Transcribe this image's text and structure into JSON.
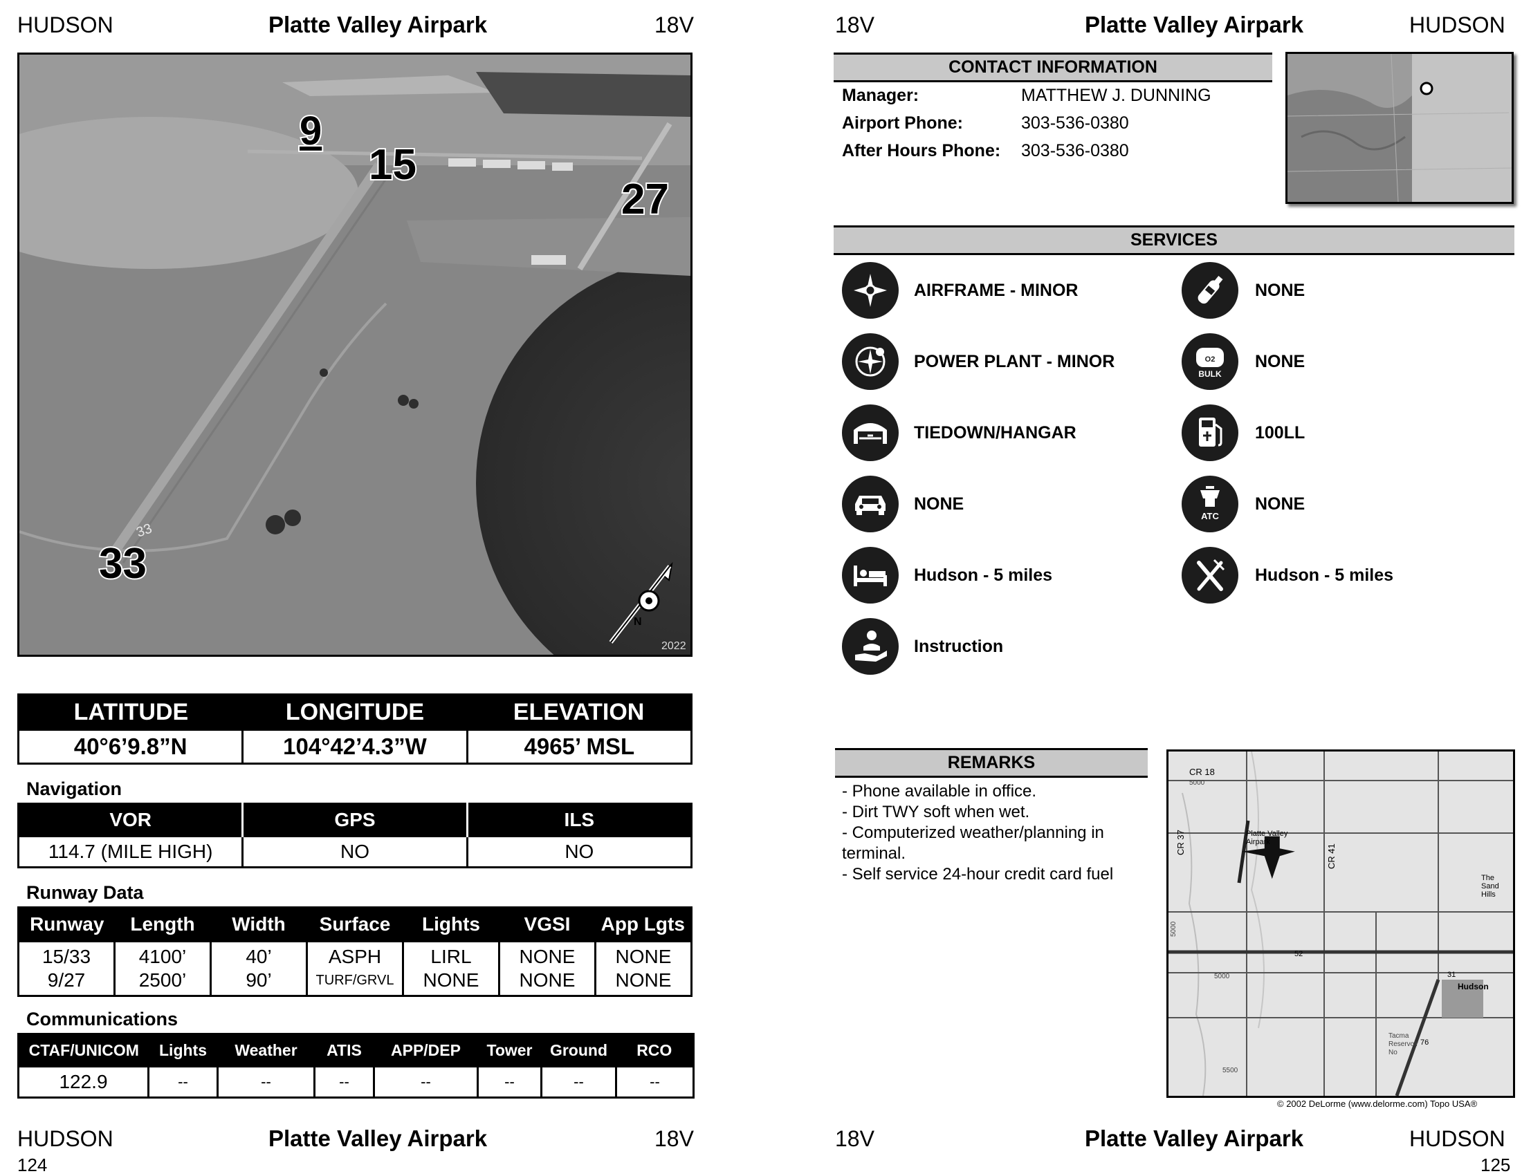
{
  "left_page": {
    "header": {
      "city": "HUDSON",
      "airport": "Platte Valley Airpark",
      "id": "18V"
    },
    "photo": {
      "runway_labels": [
        "9",
        "15",
        "27",
        "33"
      ],
      "painted_runway_number": "33",
      "year": "2022",
      "compass_letter": "N"
    },
    "coords": {
      "headers": [
        "LATITUDE",
        "LONGITUDE",
        "ELEVATION"
      ],
      "values": [
        "40°6’9.8”N",
        "104°42’4.3”W",
        "4965’ MSL"
      ]
    },
    "navigation": {
      "title": "Navigation",
      "headers": [
        "VOR",
        "GPS",
        "ILS"
      ],
      "values": [
        "114.7 (MILE HIGH)",
        "NO",
        "NO"
      ]
    },
    "runway_data": {
      "title": "Runway Data",
      "headers": [
        "Runway",
        "Length",
        "Width",
        "Surface",
        "Lights",
        "VGSI",
        "App Lgts"
      ],
      "rows": [
        [
          "15/33",
          "4100’",
          "40’",
          "ASPH",
          "LIRL",
          "NONE",
          "NONE"
        ],
        [
          "9/27",
          "2500’",
          "90’",
          "TURF/GRVL",
          "NONE",
          "NONE",
          "NONE"
        ]
      ]
    },
    "communications": {
      "title": "Communications",
      "headers": [
        "CTAF/UNICOM",
        "Lights",
        "Weather",
        "ATIS",
        "APP/DEP",
        "Tower",
        "Ground",
        "RCO"
      ],
      "values": [
        "122.9",
        "--",
        "--",
        "--",
        "--",
        "--",
        "--",
        "--"
      ]
    },
    "footer": {
      "city": "HUDSON",
      "airport": "Platte Valley Airpark",
      "id": "18V",
      "page": "124"
    }
  },
  "right_page": {
    "header": {
      "id": "18V",
      "airport": "Platte Valley Airpark",
      "city": "HUDSON"
    },
    "contact": {
      "title": "CONTACT INFORMATION",
      "rows": [
        {
          "label": "Manager:",
          "value": "MATTHEW J. DUNNING"
        },
        {
          "label": "Airport Phone:",
          "value": "303-536-0380"
        },
        {
          "label": "After Hours Phone:",
          "value": "303-536-0380"
        }
      ]
    },
    "services": {
      "title": "SERVICES",
      "items": [
        {
          "icon": "airframe-icon",
          "label": "AIRFRAME - MINOR"
        },
        {
          "icon": "oxygen-bottle-icon",
          "label": "NONE"
        },
        {
          "icon": "power-plant-icon",
          "label": "POWER PLANT - MINOR"
        },
        {
          "icon": "bulk-oxygen-icon",
          "label": "NONE",
          "icon_text": [
            "O2",
            "BULK"
          ]
        },
        {
          "icon": "hangar-icon",
          "label": "TIEDOWN/HANGAR"
        },
        {
          "icon": "fuel-pump-icon",
          "label": "100LL"
        },
        {
          "icon": "car-icon",
          "label": "NONE"
        },
        {
          "icon": "control-tower-icon",
          "label": "NONE",
          "icon_text": [
            "ATC"
          ]
        },
        {
          "icon": "bed-icon",
          "label": "Hudson - 5 miles"
        },
        {
          "icon": "fork-knife-icon",
          "label": "Hudson - 5 miles"
        },
        {
          "icon": "instruction-icon",
          "label": "Instruction"
        }
      ]
    },
    "remarks": {
      "title": "REMARKS",
      "lines": [
        "- Phone available in office.",
        "- Dirt TWY soft when wet.",
        "- Computerized weather/planning in",
        "terminal.",
        "- Self service 24-hour credit card fuel"
      ]
    },
    "map": {
      "labels": [
        "CR 18",
        "CR 37",
        "CR 41",
        "Platte Valley",
        "Airpark",
        "The",
        "Sand",
        "Hills",
        "52",
        "31",
        "Hudson",
        "76",
        "Tacma",
        "Reservoir",
        "No",
        "5000",
        "5000",
        "5000",
        "5500"
      ],
      "copyright": "© 2002 DeLorme (www.delorme.com) Topo USA®"
    },
    "footer": {
      "id": "18V",
      "airport": "Platte Valley Airpark",
      "city": "HUDSON",
      "page": "125"
    }
  }
}
